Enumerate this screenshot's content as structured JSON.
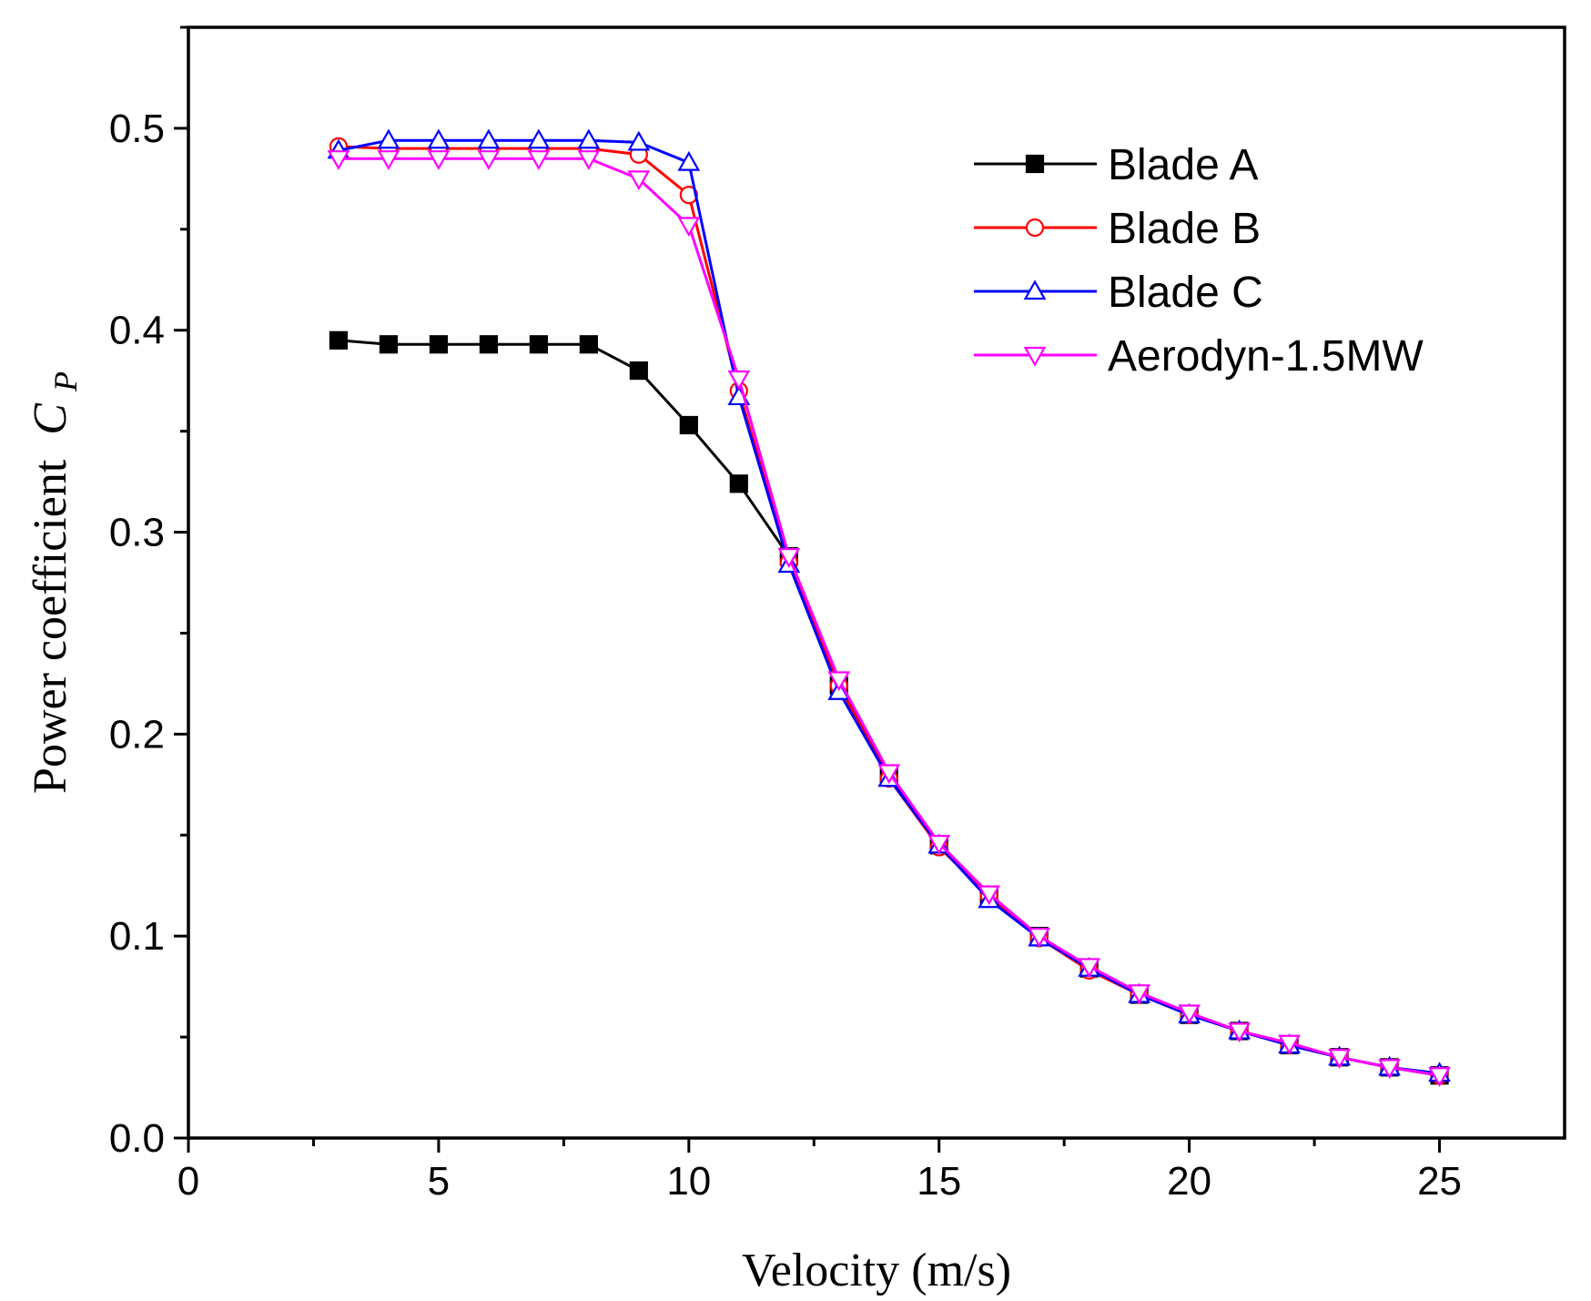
{
  "chart_data": {
    "type": "line",
    "title": "",
    "xlabel": "Velocity (m/s)",
    "ylabel": "Power coefficient",
    "ylabel_symbol": "C",
    "ylabel_subscript": "P",
    "xlim": [
      0,
      27.5
    ],
    "ylim": [
      0,
      0.55
    ],
    "xticks": [
      0,
      5,
      10,
      15,
      20,
      25
    ],
    "xtick_labels": [
      "0",
      "5",
      "10",
      "15",
      "20",
      "25"
    ],
    "yticks": [
      0.0,
      0.1,
      0.2,
      0.3,
      0.4,
      0.5
    ],
    "ytick_labels": [
      "0.0",
      "0.1",
      "0.2",
      "0.3",
      "0.4",
      "0.5"
    ],
    "grid": false,
    "legend_position": "top-right",
    "x": [
      3,
      4,
      5,
      6,
      7,
      8,
      9,
      10,
      11,
      12,
      13,
      14,
      15,
      16,
      17,
      18,
      19,
      20,
      21,
      22,
      23,
      24,
      25
    ],
    "series": [
      {
        "name": "Blade A",
        "color": "#000000",
        "marker": "filled-square",
        "values": [
          0.395,
          0.393,
          0.393,
          0.393,
          0.393,
          0.393,
          0.38,
          0.353,
          0.324,
          0.288,
          0.224,
          0.18,
          0.145,
          0.12,
          0.1,
          0.084,
          0.071,
          0.061,
          0.053,
          0.046,
          0.04,
          0.035,
          0.031
        ]
      },
      {
        "name": "Blade B",
        "color": "#ff0000",
        "marker": "open-circle",
        "values": [
          0.491,
          0.49,
          0.49,
          0.49,
          0.49,
          0.49,
          0.487,
          0.467,
          0.37,
          0.285,
          0.224,
          0.178,
          0.144,
          0.12,
          0.099,
          0.083,
          0.071,
          0.061,
          0.053,
          0.046,
          0.04,
          0.035,
          0.031
        ]
      },
      {
        "name": "Blade C",
        "color": "#0000ff",
        "marker": "open-triangle-up",
        "values": [
          0.489,
          0.494,
          0.494,
          0.494,
          0.494,
          0.494,
          0.493,
          0.483,
          0.367,
          0.284,
          0.221,
          0.178,
          0.145,
          0.118,
          0.099,
          0.084,
          0.071,
          0.061,
          0.053,
          0.046,
          0.04,
          0.035,
          0.032
        ]
      },
      {
        "name": "Aerodyn-1.5MW",
        "color": "#ff00ff",
        "marker": "open-triangle-down",
        "values": [
          0.485,
          0.485,
          0.485,
          0.485,
          0.485,
          0.485,
          0.475,
          0.452,
          0.376,
          0.288,
          0.227,
          0.181,
          0.146,
          0.121,
          0.1,
          0.085,
          0.072,
          0.062,
          0.053,
          0.047,
          0.04,
          0.035,
          0.031
        ]
      }
    ]
  }
}
